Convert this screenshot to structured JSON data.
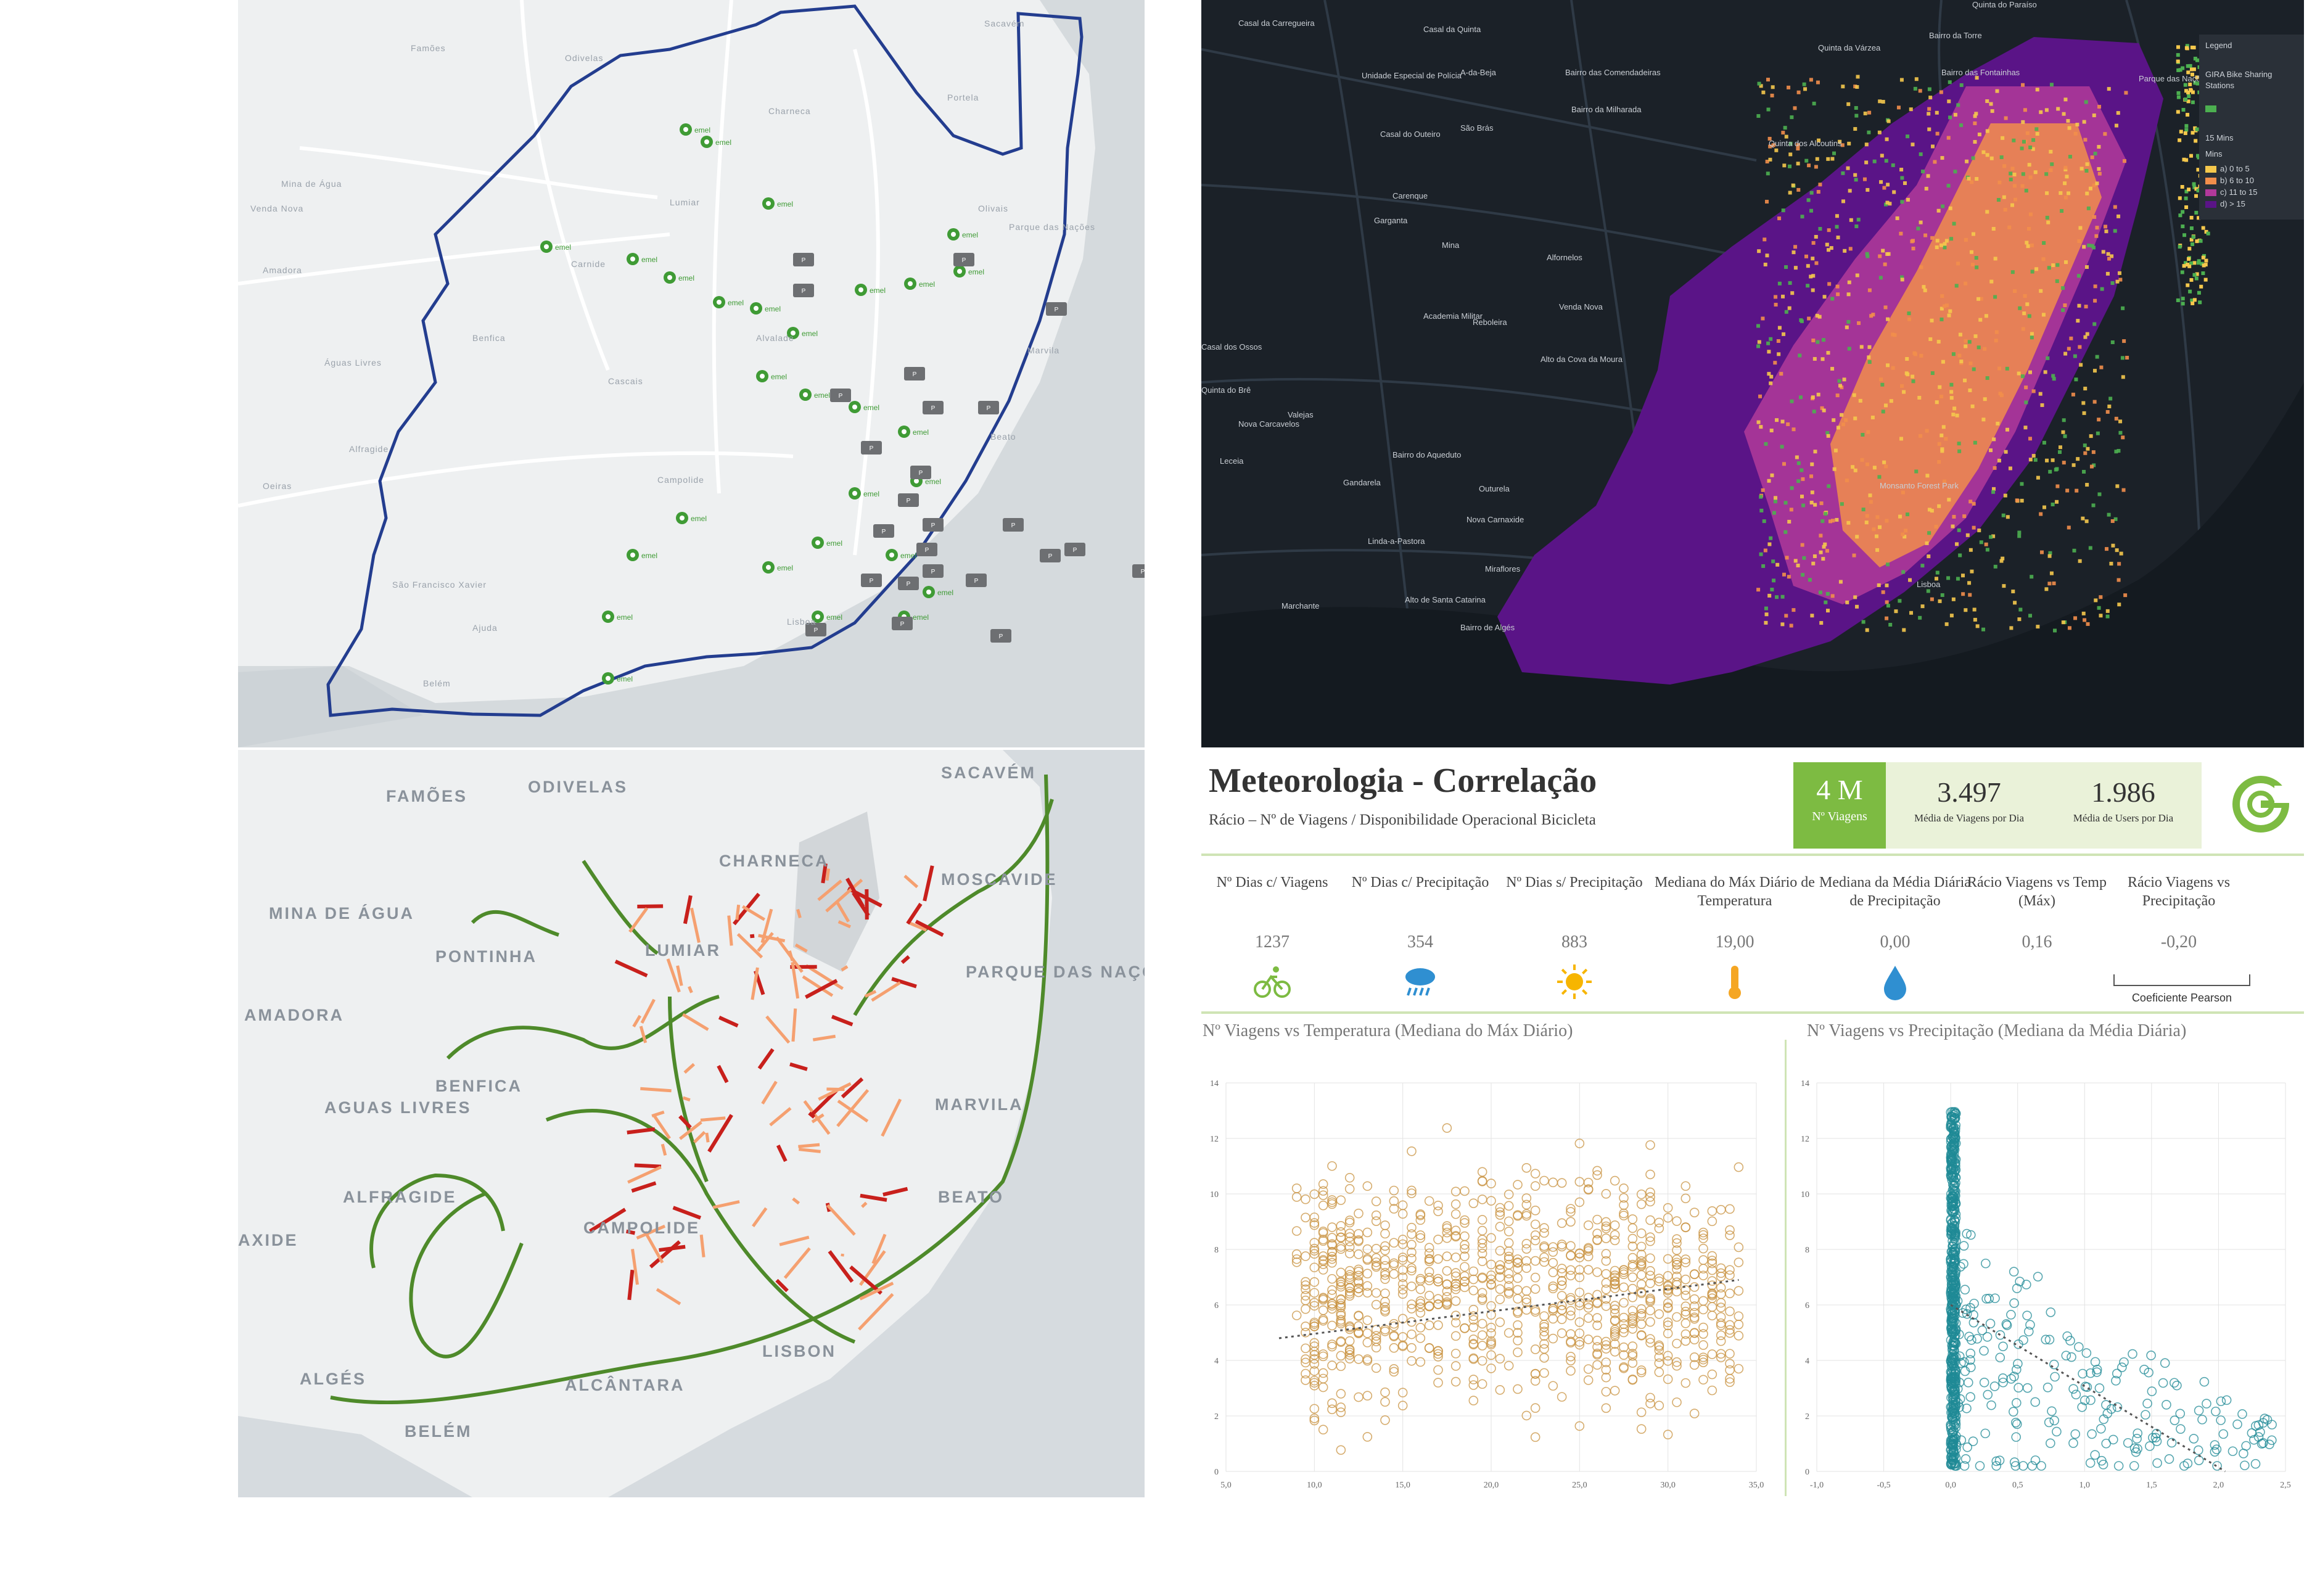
{
  "map_topleft": {
    "labels": [
      "Sacavém",
      "Famões",
      "Odivelas",
      "Portela",
      "Amadora",
      "Olivais",
      "Charneca",
      "Lumiar",
      "Benfica",
      "Alvalade",
      "Marvila",
      "Campolide",
      "São Francisco Xavier",
      "Ajuda",
      "Belém",
      "Lisboa",
      "Parque das Nações",
      "Beato",
      "Águas Livres",
      "Alfragide",
      "Venda Nova",
      "Mina de Água",
      "Carnide",
      "Cascais",
      "Oeiras"
    ],
    "boundary_color": "#233d8f",
    "marker_labels": [
      "emel",
      "sabe",
      "P"
    ]
  },
  "map_topright": {
    "labels": [
      "Casal da Carregueira",
      "Casal da Quinta",
      "A-da-Beja",
      "Bairro das Comendadeiras",
      "Bairro da Milharada",
      "São Brás",
      "Casal do Outeiro",
      "Carenque",
      "Garganta",
      "Mina",
      "Alfornelos",
      "Venda Nova",
      "Reboleira",
      "Alto da Cova da Moura",
      "Academia Militar",
      "Casal dos Ossos",
      "Quinta do Brê",
      "Valejas",
      "Nova Carcavelos",
      "Leceia",
      "Bairro do Aqueduto",
      "Gandarela",
      "Outurela",
      "Nova Carnaxide",
      "Linda-a-Pastora",
      "Miraflores",
      "Alto de Santa Catarina",
      "Bairro de Algés",
      "Marchante",
      "Quinta do Paraíso",
      "Bairro da Torre",
      "Bairro das Fontainhas",
      "Quinta da Várzea",
      "Quinta dos Alcoutins",
      "Monsanto Forest Park",
      "Unidade Especial de Polícia",
      "Parque das Nações",
      "Lisboa"
    ],
    "legend": {
      "title": "Legend",
      "layer1": "GIRA Bike Sharing Stations",
      "layer2": "15 Mins",
      "sub": "Mins",
      "items": [
        {
          "label": "a) 0 to 5",
          "color": "#f5c84c"
        },
        {
          "label": "b) 6 to 10",
          "color": "#f28e4b"
        },
        {
          "label": "c) 11 to 15",
          "color": "#b2399a"
        },
        {
          "label": "d) > 15",
          "color": "#5a1487"
        }
      ],
      "station_color": "#4caf50"
    }
  },
  "map_bottomleft": {
    "labels": [
      "FAMÕES",
      "ODIVELAS",
      "SACAVÉM",
      "CHARNECA",
      "MOSCAVIDE",
      "MINA DE ÁGUA",
      "PONTINHA",
      "LUMIAR",
      "PARQUE DAS NAÇÕES",
      "AMADORA",
      "BENFICA",
      "AGUAS LIVRES",
      "MARVILA",
      "ALFRAGIDE",
      "CAMPOLIDE",
      "BEATO",
      "AXIDE",
      "LISBON",
      "ALGÉS",
      "ALCÂNTARA",
      "BELÉM"
    ],
    "colors": {
      "green": "#4e8a2a",
      "orange": "#f5a070",
      "red": "#c8201c"
    }
  },
  "dashboard": {
    "title": "Meteorologia - Correlação",
    "subtitle": "Rácio  – Nº de Viagens / Disponibilidade Operacional Bicicleta",
    "kpis": [
      {
        "value": "4 M",
        "label": "Nº Viagens"
      },
      {
        "value": "3.497",
        "label": "Média de Viagens por Dia"
      },
      {
        "value": "1.986",
        "label": "Média de Users por Dia"
      }
    ],
    "metrics": [
      {
        "header": "Nº Dias c/ Viagens",
        "value": "1237",
        "icon": "bicycle-icon"
      },
      {
        "header": "Nº Dias c/ Precipitação",
        "value": "354",
        "icon": "rain-cloud-icon"
      },
      {
        "header": "Nº Dias s/ Precipitação",
        "value": "883",
        "icon": "sun-icon"
      },
      {
        "header": "Mediana do Máx Diário de Temperatura",
        "value": "19,00",
        "icon": "thermometer-icon"
      },
      {
        "header": "Mediana da Média Diária de Precipitação",
        "value": "0,00",
        "icon": "water-drop-icon"
      },
      {
        "header": "Rácio Viagens vs Temp (Máx)",
        "value": "0,16",
        "icon": ""
      },
      {
        "header": "Rácio Viagens vs Precipitação",
        "value": "-0,20",
        "icon": ""
      }
    ],
    "pearson_label": "Coeficiente Pearson",
    "brand_color": "#7dbb42"
  },
  "chart_data": [
    {
      "type": "scatter",
      "title": "Nº Viagens vs Temperatura (Mediana do Máx Diário)",
      "xlim": [
        5,
        35
      ],
      "ylim": [
        0,
        14
      ],
      "xticks": [
        "5,0",
        "10,0",
        "15,0",
        "20,0",
        "25,0",
        "30,0",
        "35,0"
      ],
      "yticks": [
        "0",
        "2",
        "4",
        "6",
        "8",
        "10",
        "12",
        "14"
      ],
      "color": "#c8913f",
      "trend": {
        "x": [
          8,
          34
        ],
        "y": [
          4.8,
          6.9
        ]
      },
      "points_summary": "dense cloud x 9-34, y 0-13, densest x 13-25 y 3-11"
    },
    {
      "type": "scatter",
      "title": "Nº Viagens vs Precipitação (Mediana da Média Diária)",
      "xlim": [
        -1.0,
        2.5
      ],
      "ylim": [
        0,
        14
      ],
      "xticks": [
        "-1,0",
        "-0,5",
        "0,0",
        "0,5",
        "1,0",
        "1,5",
        "2,0",
        "2,5"
      ],
      "yticks": [
        "0",
        "2",
        "4",
        "6",
        "8",
        "10",
        "12",
        "14"
      ],
      "color": "#1f8a96",
      "trend": {
        "x": [
          0,
          2.05
        ],
        "y": [
          6.0,
          0.0
        ]
      },
      "points_summary": "dense column at x=0 y 0-13, scattered x 0-2.5 y 0-9"
    }
  ]
}
